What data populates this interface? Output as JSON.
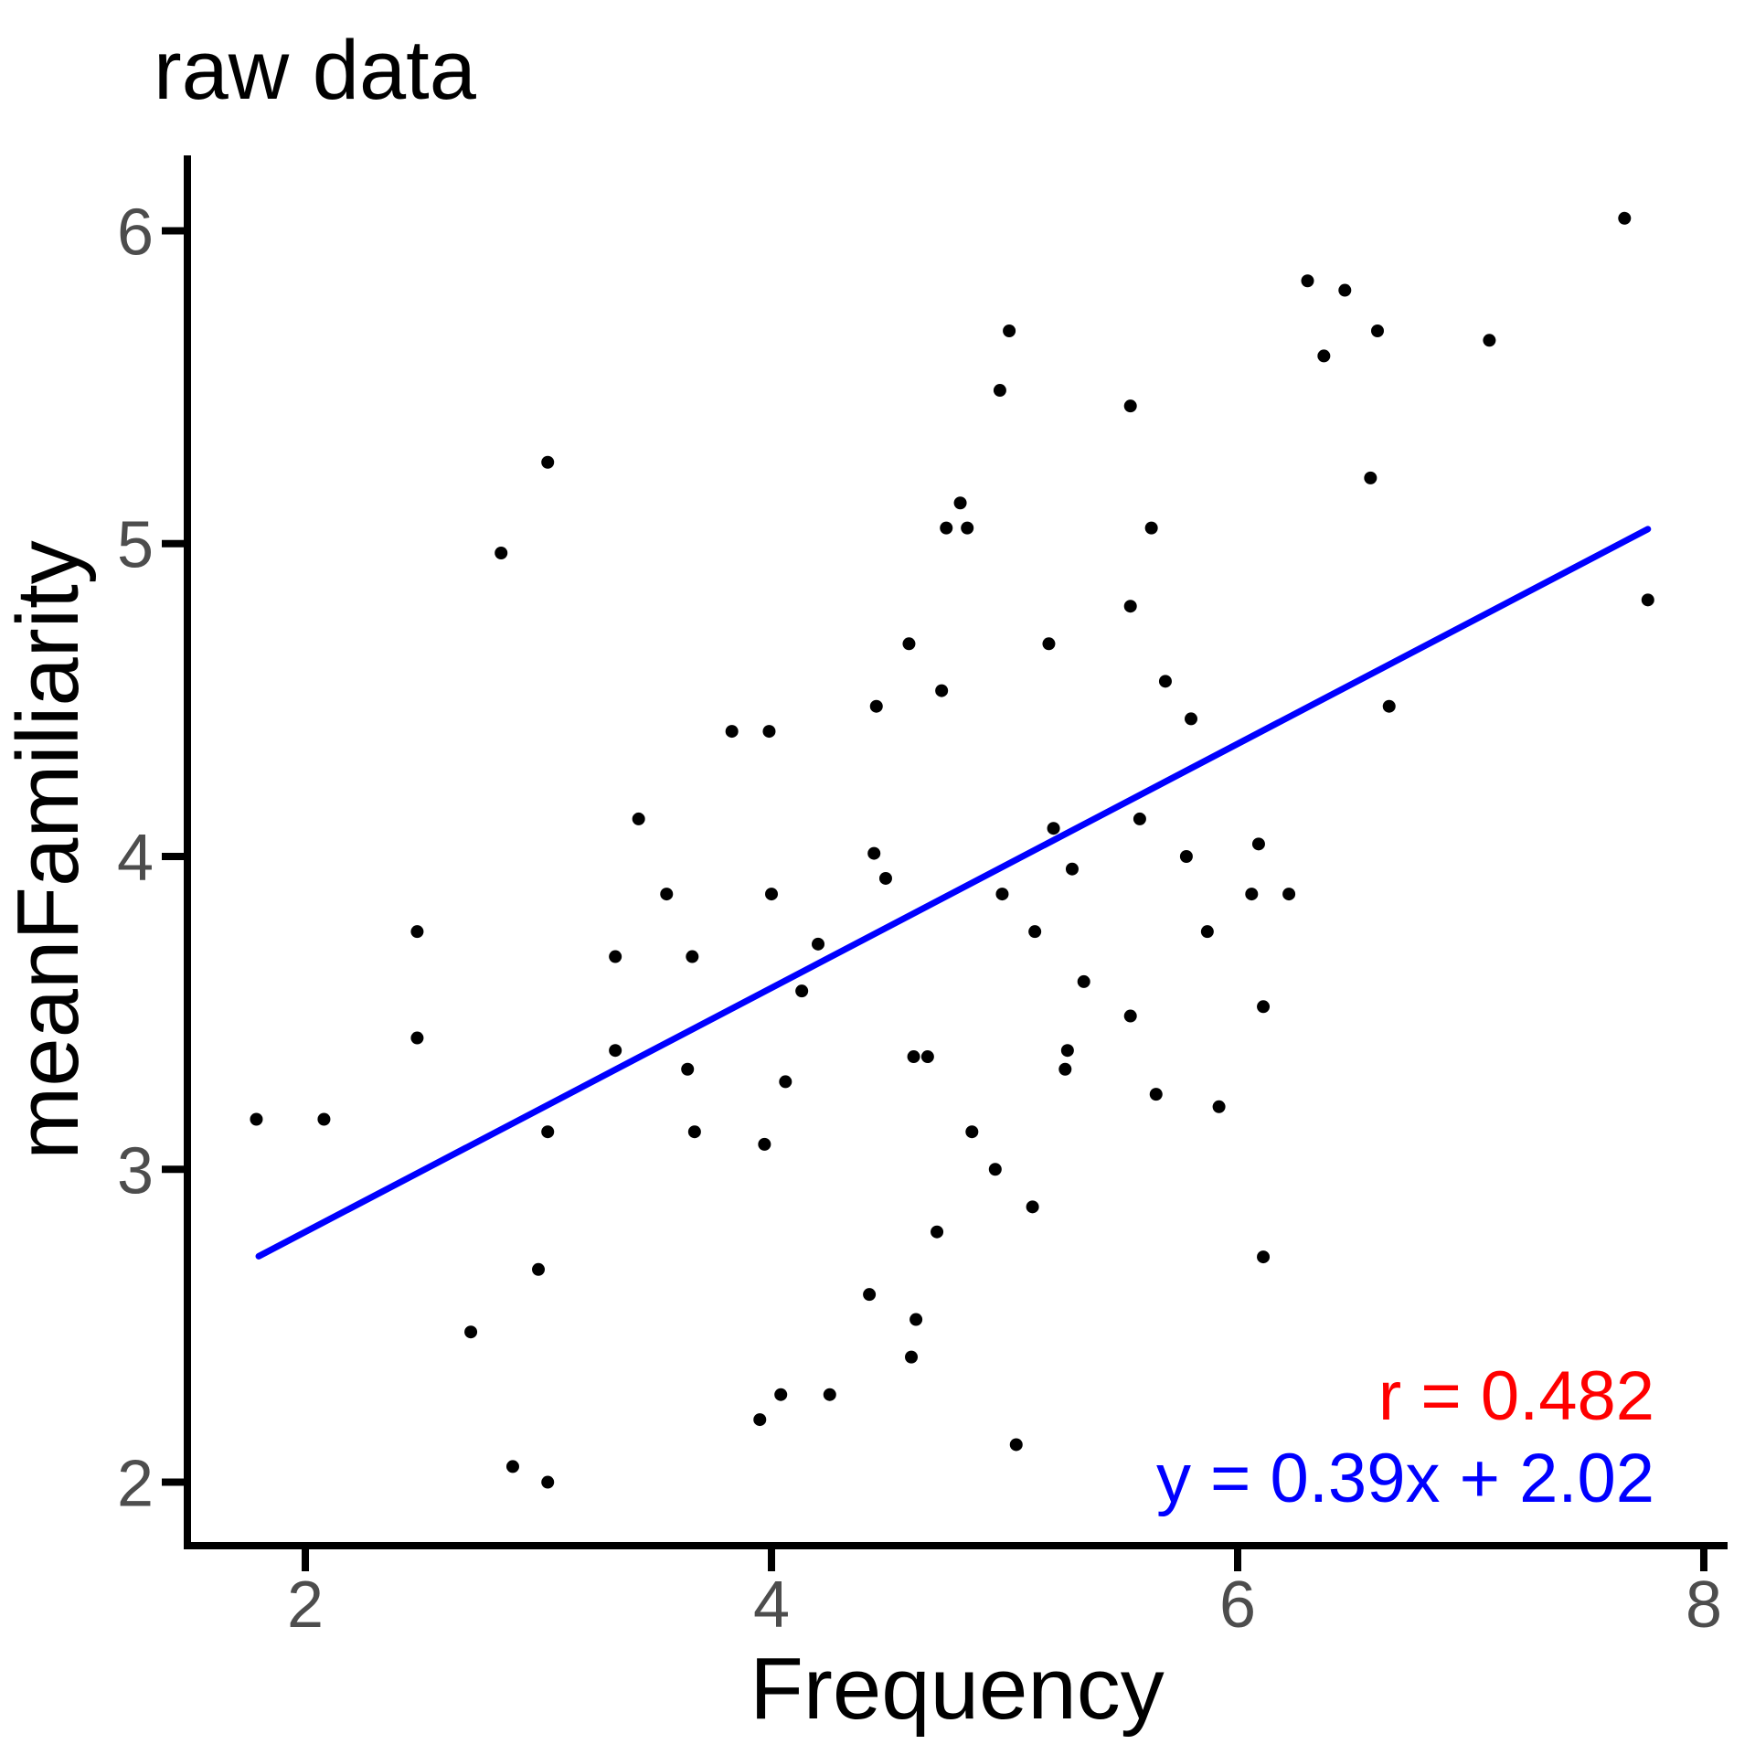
{
  "chart_data": {
    "type": "scatter",
    "title": "raw data",
    "xlabel": "Frequency",
    "ylabel": "meanFamiliarity",
    "x_ticks": [
      2,
      4,
      6,
      8
    ],
    "y_ticks": [
      2,
      3,
      4,
      5,
      6
    ],
    "xlim": [
      1.494,
      8.102
    ],
    "ylim": [
      1.797,
      6.241
    ],
    "grid": false,
    "legend": "none",
    "point_color": "#000000",
    "axis_color": "#000000",
    "tick_label_color": "#4d4d4d",
    "points": [
      [
        3.04,
        5.26
      ],
      [
        2.84,
        4.97
      ],
      [
        5.02,
        5.68
      ],
      [
        4.98,
        5.49
      ],
      [
        5.54,
        5.44
      ],
      [
        4.81,
        5.13
      ],
      [
        4.75,
        5.05
      ],
      [
        4.84,
        5.05
      ],
      [
        6.3,
        5.84
      ],
      [
        6.46,
        5.81
      ],
      [
        6.6,
        5.68
      ],
      [
        6.37,
        5.6
      ],
      [
        7.08,
        5.65
      ],
      [
        6.57,
        5.21
      ],
      [
        5.63,
        5.05
      ],
      [
        3.43,
        4.12
      ],
      [
        2.48,
        3.76
      ],
      [
        3.33,
        3.68
      ],
      [
        2.48,
        3.42
      ],
      [
        3.33,
        3.38
      ],
      [
        4.59,
        4.68
      ],
      [
        5.19,
        4.68
      ],
      [
        4.73,
        4.53
      ],
      [
        4.45,
        4.48
      ],
      [
        3.83,
        4.4
      ],
      [
        3.99,
        4.4
      ],
      [
        5.21,
        4.09
      ],
      [
        4.44,
        4.01
      ],
      [
        4.49,
        3.93
      ],
      [
        5.29,
        3.96
      ],
      [
        3.55,
        3.88
      ],
      [
        4.0,
        3.88
      ],
      [
        4.99,
        3.88
      ],
      [
        5.13,
        3.76
      ],
      [
        4.2,
        3.72
      ],
      [
        3.66,
        3.68
      ],
      [
        5.34,
        3.6
      ],
      [
        4.13,
        3.57
      ],
      [
        5.27,
        3.38
      ],
      [
        5.54,
        4.8
      ],
      [
        5.69,
        4.56
      ],
      [
        5.8,
        4.44
      ],
      [
        6.65,
        4.48
      ],
      [
        5.58,
        4.12
      ],
      [
        6.09,
        4.04
      ],
      [
        5.78,
        4.0
      ],
      [
        6.06,
        3.88
      ],
      [
        6.22,
        3.88
      ],
      [
        5.87,
        3.76
      ],
      [
        6.11,
        3.52
      ],
      [
        5.54,
        3.49
      ],
      [
        1.79,
        3.16
      ],
      [
        2.08,
        3.16
      ],
      [
        3.04,
        3.12
      ],
      [
        3.0,
        2.68
      ],
      [
        2.71,
        2.48
      ],
      [
        2.89,
        2.05
      ],
      [
        3.04,
        2.0
      ],
      [
        3.64,
        3.32
      ],
      [
        4.06,
        3.28
      ],
      [
        4.61,
        3.36
      ],
      [
        4.67,
        3.36
      ],
      [
        5.26,
        3.32
      ],
      [
        3.67,
        3.12
      ],
      [
        3.97,
        3.08
      ],
      [
        4.86,
        3.12
      ],
      [
        4.96,
        3.0
      ],
      [
        5.12,
        2.88
      ],
      [
        4.71,
        2.8
      ],
      [
        4.42,
        2.6
      ],
      [
        4.62,
        2.52
      ],
      [
        4.6,
        2.4
      ],
      [
        4.04,
        2.28
      ],
      [
        4.25,
        2.28
      ],
      [
        3.95,
        2.2
      ],
      [
        5.05,
        2.12
      ],
      [
        5.65,
        3.24
      ],
      [
        5.92,
        3.2
      ],
      [
        6.11,
        2.72
      ],
      [
        7.66,
        6.04
      ],
      [
        7.76,
        4.82
      ]
    ],
    "regression_line": {
      "equation": "y = 0.39x + 2.02",
      "slope": 0.39,
      "intercept": 2.02,
      "x_start": 1.8,
      "x_end": 7.76,
      "color": "#0000ff"
    },
    "annotations": [
      {
        "text": "r = 0.482",
        "color": "#ff0000",
        "align": "right"
      },
      {
        "text": "y = 0.39x + 2.02",
        "color": "#0000ff",
        "align": "right"
      }
    ]
  }
}
